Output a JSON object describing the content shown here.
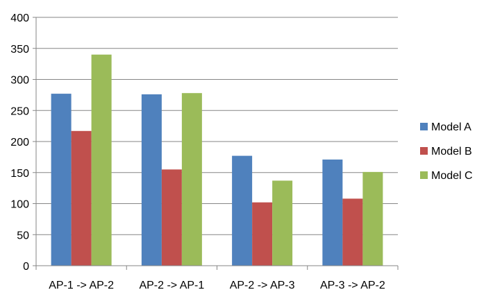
{
  "chart_data": {
    "type": "bar",
    "title": "",
    "xlabel": "",
    "ylabel": "",
    "categories": [
      "AP-1 -> AP-2",
      "AP-2 -> AP-1",
      "AP-2 -> AP-3",
      "AP-3 -> AP-2"
    ],
    "ylim": [
      0,
      400
    ],
    "yticks": [
      0,
      50,
      100,
      150,
      200,
      250,
      300,
      350,
      400
    ],
    "grid": true,
    "legend_position": "right",
    "series": [
      {
        "name": "Model A",
        "color": "#4F81BD",
        "values": [
          277,
          276,
          177,
          171
        ]
      },
      {
        "name": "Model B",
        "color": "#C0504D",
        "values": [
          217,
          155,
          102,
          108
        ]
      },
      {
        "name": "Model C",
        "color": "#9BBB59",
        "values": [
          340,
          278,
          137,
          151
        ]
      }
    ]
  }
}
